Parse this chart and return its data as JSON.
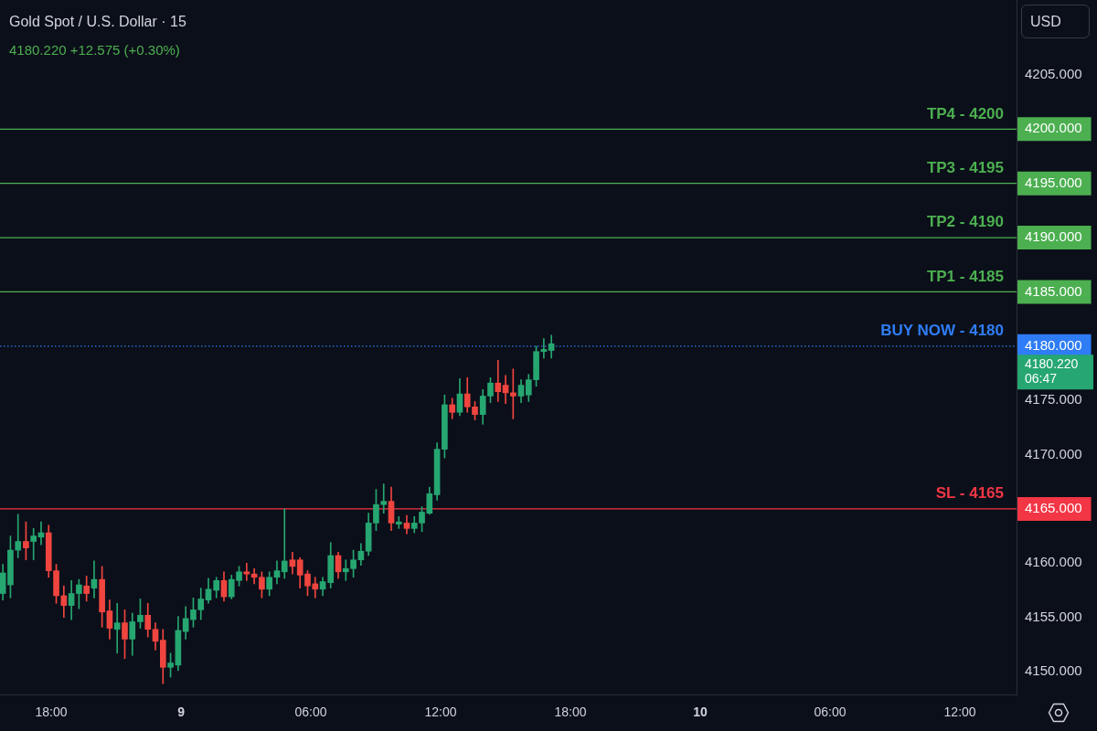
{
  "chart_data": {
    "type": "candlestick",
    "title": "Gold Spot / U.S. Dollar · 15",
    "subtitle": "4180.220 +12.575 (+0.30%)",
    "ylabel": "USD",
    "x": [
      "--12-08T15:46",
      "--12-08T16:07",
      "--12-08T16:28",
      "--12-08T16:50",
      "--12-08T17:11",
      "--12-08T17:32",
      "--12-08T17:53",
      "--12-08T18:14",
      "--12-08T18:35",
      "--12-08T18:56",
      "--12-08T19:17",
      "--12-08T19:38",
      "--12-08T19:59",
      "--12-08T20:21",
      "--12-08T20:42",
      "--12-08T21:03",
      "--12-08T21:24",
      "--12-08T21:45",
      "--12-08T22:07",
      "--12-08T22:28",
      "--12-08T22:49",
      "--12-08T23:10",
      "--12-08T23:31",
      "--12-08T23:52",
      "--12-09T00:13",
      "--12-09T00:34",
      "--12-09T00:55",
      "--12-09T01:16",
      "--12-09T01:38",
      "--12-09T01:59",
      "--12-09T02:20",
      "--12-09T02:41",
      "--12-09T03:02",
      "--12-09T03:23",
      "--12-09T03:44",
      "--12-09T04:05",
      "--12-09T04:26",
      "--12-09T04:47",
      "--12-09T05:09",
      "--12-09T05:30",
      "--12-09T05:51",
      "--12-09T06:12",
      "--12-09T06:33",
      "--12-09T06:55",
      "--12-09T07:16",
      "--12-09T07:37",
      "--12-09T07:58",
      "--12-09T08:19",
      "--12-09T08:40",
      "--12-09T09:01",
      "--12-09T09:22",
      "--12-09T09:43",
      "--12-09T10:04",
      "--12-09T10:26",
      "--12-09T10:47",
      "--12-09T11:08",
      "--12-09T11:29",
      "--12-09T11:50",
      "--12-09T12:11",
      "--12-09T12:32",
      "--12-09T12:53",
      "--12-09T13:14",
      "--12-09T13:35",
      "--12-09T13:57",
      "--12-09T14:18",
      "--12-09T14:39",
      "--12-09T15:00",
      "--12-09T15:21",
      "--12-09T15:43",
      "--12-09T16:04",
      "--12-09T16:25",
      "--12-09T16:46",
      "--12-09T17:07"
    ],
    "ohlc": [
      [
        4157.2,
        4159.9,
        4156.6,
        4159.1
      ],
      [
        4158.0,
        4162.5,
        4156.8,
        4161.2
      ],
      [
        4161.2,
        4164.5,
        4160.5,
        4162.0
      ],
      [
        4162.0,
        4163.8,
        4160.3,
        4161.4
      ],
      [
        4162.0,
        4163.2,
        4160.3,
        4162.5
      ],
      [
        4162.4,
        4163.8,
        4161.7,
        4162.8
      ],
      [
        4162.8,
        4163.5,
        4158.7,
        4159.3
      ],
      [
        4159.3,
        4159.9,
        4156.3,
        4157.0
      ],
      [
        4157.0,
        4157.9,
        4155.0,
        4156.1
      ],
      [
        4156.1,
        4158.4,
        4154.8,
        4157.2
      ],
      [
        4157.2,
        4158.5,
        4155.8,
        4158.0
      ],
      [
        4157.9,
        4158.8,
        4156.5,
        4157.2
      ],
      [
        4157.7,
        4160.2,
        4156.8,
        4158.5
      ],
      [
        4158.5,
        4159.7,
        4154.1,
        4155.5
      ],
      [
        4155.6,
        4156.6,
        4153.0,
        4154.0
      ],
      [
        4153.9,
        4156.3,
        4151.7,
        4154.5
      ],
      [
        4154.5,
        4155.7,
        4151.2,
        4153.0
      ],
      [
        4153.0,
        4155.4,
        4151.5,
        4154.6
      ],
      [
        4154.6,
        4156.7,
        4154.0,
        4155.2
      ],
      [
        4155.2,
        4156.3,
        4153.2,
        4153.9
      ],
      [
        4153.9,
        4154.5,
        4152.0,
        4152.8
      ],
      [
        4152.9,
        4153.9,
        4148.9,
        4150.4
      ],
      [
        4150.4,
        4151.7,
        4149.5,
        4150.8
      ],
      [
        4150.6,
        4155.1,
        4150.1,
        4153.8
      ],
      [
        4153.7,
        4156.0,
        4153.0,
        4154.9
      ],
      [
        4154.8,
        4156.8,
        4154.1,
        4155.7
      ],
      [
        4155.7,
        4157.7,
        4154.8,
        4156.7
      ],
      [
        4156.6,
        4158.6,
        4156.3,
        4157.6
      ],
      [
        4157.5,
        4158.7,
        4156.8,
        4158.4
      ],
      [
        4158.4,
        4159.2,
        4156.5,
        4156.9
      ],
      [
        4156.9,
        4158.9,
        4156.7,
        4158.5
      ],
      [
        4158.4,
        4159.7,
        4157.9,
        4159.2
      ],
      [
        4159.2,
        4160.0,
        4158.4,
        4159.0
      ],
      [
        4159.0,
        4159.5,
        4158.1,
        4158.7
      ],
      [
        4158.7,
        4159.2,
        4156.8,
        4157.6
      ],
      [
        4157.6,
        4159.2,
        4157.0,
        4158.7
      ],
      [
        4158.7,
        4160.2,
        4158.1,
        4159.3
      ],
      [
        4159.2,
        4165.0,
        4158.6,
        4160.2
      ],
      [
        4160.3,
        4161.0,
        4159.0,
        4159.7
      ],
      [
        4160.3,
        4160.5,
        4157.7,
        4158.9
      ],
      [
        4159.0,
        4159.3,
        4157.0,
        4157.9
      ],
      [
        4158.1,
        4158.7,
        4156.8,
        4157.6
      ],
      [
        4157.6,
        4158.7,
        4157.0,
        4158.3
      ],
      [
        4158.2,
        4161.9,
        4157.7,
        4160.7
      ],
      [
        4160.7,
        4161.0,
        4158.6,
        4159.2
      ],
      [
        4159.2,
        4160.3,
        4158.4,
        4159.5
      ],
      [
        4159.5,
        4161.2,
        4158.7,
        4160.3
      ],
      [
        4160.3,
        4161.8,
        4159.8,
        4161.1
      ],
      [
        4161.1,
        4164.6,
        4160.7,
        4163.7
      ],
      [
        4163.7,
        4166.8,
        4163.0,
        4165.4
      ],
      [
        4165.4,
        4167.3,
        4164.6,
        4165.7
      ],
      [
        4165.7,
        4167.0,
        4163.0,
        4163.7
      ],
      [
        4163.6,
        4164.3,
        4163.2,
        4163.8
      ],
      [
        4163.7,
        4164.4,
        4162.7,
        4163.2
      ],
      [
        4163.2,
        4164.3,
        4162.8,
        4163.7
      ],
      [
        4163.7,
        4165.2,
        4162.9,
        4164.7
      ],
      [
        4164.6,
        4167.0,
        4164.5,
        4166.4
      ],
      [
        4166.3,
        4171.1,
        4165.8,
        4170.5
      ],
      [
        4170.5,
        4175.5,
        4169.7,
        4174.6
      ],
      [
        4174.6,
        4175.2,
        4173.3,
        4173.9
      ],
      [
        4173.9,
        4177.0,
        4173.6,
        4175.6
      ],
      [
        4175.6,
        4177.1,
        4173.9,
        4174.4
      ],
      [
        4174.4,
        4174.9,
        4173.2,
        4173.7
      ],
      [
        4173.7,
        4176.0,
        4172.8,
        4175.4
      ],
      [
        4175.4,
        4177.1,
        4174.8,
        4176.6
      ],
      [
        4176.6,
        4178.7,
        4174.9,
        4175.8
      ],
      [
        4176.4,
        4177.3,
        4174.7,
        4175.7
      ],
      [
        4175.7,
        4177.9,
        4173.3,
        4175.4
      ],
      [
        4175.4,
        4176.9,
        4174.8,
        4176.4
      ],
      [
        4175.5,
        4177.4,
        4174.9,
        4176.9
      ],
      [
        4176.9,
        4180.0,
        4176.3,
        4179.5
      ],
      [
        4179.5,
        4180.7,
        4178.9,
        4179.7
      ],
      [
        4179.6,
        4181.0,
        4178.9,
        4180.22
      ]
    ],
    "colors": [
      "#26a671",
      "#26a671",
      "#26a671",
      "#f0453f",
      "#26a671",
      "#26a671",
      "#f0453f",
      "#f0453f",
      "#f0453f",
      "#26a671",
      "#26a671",
      "#f0453f",
      "#26a671",
      "#f0453f",
      "#f0453f",
      "#26a671",
      "#f0453f",
      "#26a671",
      "#26a671",
      "#f0453f",
      "#f0453f",
      "#f0453f",
      "#26a671",
      "#26a671",
      "#26a671",
      "#26a671",
      "#26a671",
      "#26a671",
      "#26a671",
      "#f0453f",
      "#26a671",
      "#26a671",
      "#f0453f",
      "#f0453f",
      "#f0453f",
      "#26a671",
      "#26a671",
      "#26a671",
      "#f0453f",
      "#f0453f",
      "#f0453f",
      "#f0453f",
      "#26a671",
      "#26a671",
      "#f0453f",
      "#26a671",
      "#26a671",
      "#26a671",
      "#26a671",
      "#26a671",
      "#26a671",
      "#f0453f",
      "#26a671",
      "#f0453f",
      "#26a671",
      "#26a671",
      "#26a671",
      "#26a671",
      "#26a671",
      "#f0453f",
      "#26a671",
      "#f0453f",
      "#f0453f",
      "#26a671",
      "#26a671",
      "#f0453f",
      "#f0453f",
      "#f0453f",
      "#26a671",
      "#26a671",
      "#26a671",
      "#26a671",
      "#26a671"
    ],
    "xlim": [
      "--12-08T15:38",
      "--12-10T14:37"
    ],
    "xticks": [
      {
        "value": "--12-08T18:00",
        "label": "18:00"
      },
      {
        "value": "--12-09",
        "label": "9"
      },
      {
        "value": "--12-09T06:00",
        "label": "06:00"
      },
      {
        "value": "--12-09T12:00",
        "label": "12:00"
      },
      {
        "value": "--12-09T18:00",
        "label": "18:00"
      },
      {
        "value": "--12-10",
        "label": "10"
      },
      {
        "value": "--12-10T06:00",
        "label": "06:00"
      },
      {
        "value": "--12-10T12:00",
        "label": "12:00"
      }
    ],
    "ylim": [
      4147.9,
      4211.9
    ],
    "yticks": [
      {
        "value": 4150,
        "label": "4150.000"
      },
      {
        "value": 4155,
        "label": "4155.000"
      },
      {
        "value": 4160,
        "label": "4160.000"
      },
      {
        "value": 4165,
        "label": "4165.000"
      },
      {
        "value": 4170,
        "label": "4170.000"
      },
      {
        "value": 4175,
        "label": "4175.000"
      },
      {
        "value": 4180,
        "label": "4180.000"
      },
      {
        "value": 4185,
        "label": "4185.000"
      },
      {
        "value": 4190,
        "label": "4190.000"
      },
      {
        "value": 4195,
        "label": "4195.000"
      },
      {
        "value": 4200,
        "label": "4200.000"
      },
      {
        "value": 4205,
        "label": "4205.000"
      }
    ],
    "ref_lines": [
      {
        "axis": "y",
        "value": 4200,
        "label": "TP4 - 4200",
        "color": "#4caf50"
      },
      {
        "axis": "y",
        "value": 4195,
        "label": "TP3 - 4195",
        "color": "#4caf50"
      },
      {
        "axis": "y",
        "value": 4190,
        "label": "TP2 - 4190",
        "color": "#4caf50"
      },
      {
        "axis": "y",
        "value": 4185,
        "label": "TP1 - 4185",
        "color": "#4caf50"
      },
      {
        "axis": "y",
        "value": 4180,
        "label": "BUY NOW - 4180",
        "color": "#2f7df6",
        "line_style": "dotted"
      },
      {
        "axis": "y",
        "value": 4165,
        "label": "SL - 4165",
        "color": "#f23645"
      }
    ],
    "annotations": [
      "4180.220",
      "06:47"
    ]
  }
}
